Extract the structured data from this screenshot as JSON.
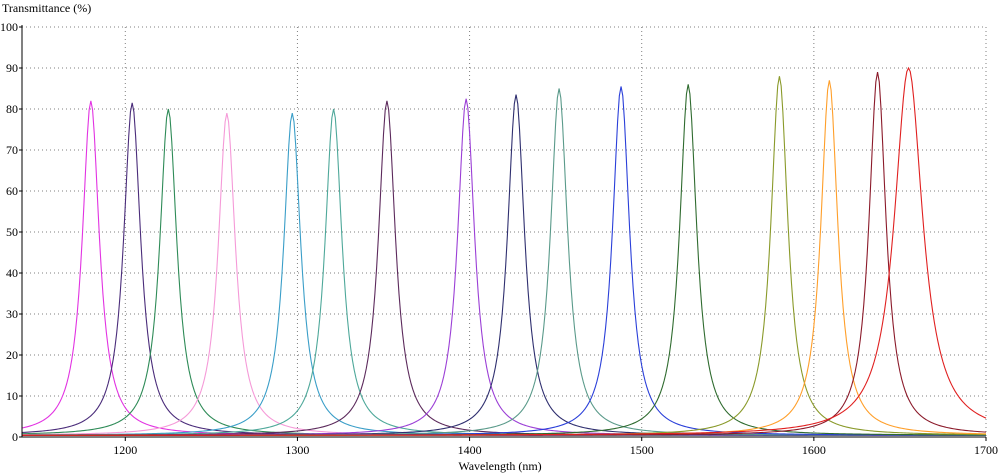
{
  "chart_data": {
    "type": "line",
    "title": "",
    "xlabel": "Wavelength (nm)",
    "ylabel": "Transmittance (%)",
    "xlim": [
      1140,
      1700
    ],
    "ylim": [
      0,
      100
    ],
    "x_ticks": [
      1200,
      1300,
      1400,
      1500,
      1600,
      1700
    ],
    "y_ticks": [
      0,
      10,
      20,
      30,
      40,
      50,
      60,
      70,
      80,
      90,
      100
    ],
    "x_tick_labels": [
      "1200",
      "1300",
      "1400",
      "1500",
      "1600",
      "1700"
    ],
    "y_tick_labels": [
      "0",
      "10",
      "20",
      "30",
      "40",
      "50",
      "60",
      "70",
      "80",
      "90",
      "100"
    ],
    "grid": true,
    "legend": "none",
    "series": [
      {
        "color": "#e233e2",
        "peak_x": 1180,
        "peak_y": 82,
        "fwhm": 12
      },
      {
        "color": "#4a2c7a",
        "peak_x": 1204,
        "peak_y": 81.5,
        "fwhm": 12
      },
      {
        "color": "#2e8b57",
        "peak_x": 1225,
        "peak_y": 80,
        "fwhm": 12
      },
      {
        "color": "#f59ad8",
        "peak_x": 1259,
        "peak_y": 79,
        "fwhm": 12
      },
      {
        "color": "#3a9ec8",
        "peak_x": 1297,
        "peak_y": 79,
        "fwhm": 12
      },
      {
        "color": "#4ea89a",
        "peak_x": 1321,
        "peak_y": 80,
        "fwhm": 12
      },
      {
        "color": "#5c2a5c",
        "peak_x": 1352,
        "peak_y": 82,
        "fwhm": 12
      },
      {
        "color": "#9b3fd6",
        "peak_x": 1398,
        "peak_y": 82.5,
        "fwhm": 12
      },
      {
        "color": "#2f2f6f",
        "peak_x": 1427,
        "peak_y": 83.5,
        "fwhm": 12
      },
      {
        "color": "#5a9a8a",
        "peak_x": 1452,
        "peak_y": 85,
        "fwhm": 12
      },
      {
        "color": "#2a3fd9",
        "peak_x": 1488,
        "peak_y": 85.5,
        "fwhm": 12
      },
      {
        "color": "#2f6b2f",
        "peak_x": 1527,
        "peak_y": 86,
        "fwhm": 12
      },
      {
        "color": "#8a9a2a",
        "peak_x": 1580,
        "peak_y": 88,
        "fwhm": 12
      },
      {
        "color": "#ff9f2a",
        "peak_x": 1609,
        "peak_y": 87,
        "fwhm": 12
      },
      {
        "color": "#8b1a2a",
        "peak_x": 1637,
        "peak_y": 89,
        "fwhm": 12
      },
      {
        "color": "#e02020",
        "peak_x": 1655,
        "peak_y": 90,
        "fwhm": 20
      }
    ]
  }
}
